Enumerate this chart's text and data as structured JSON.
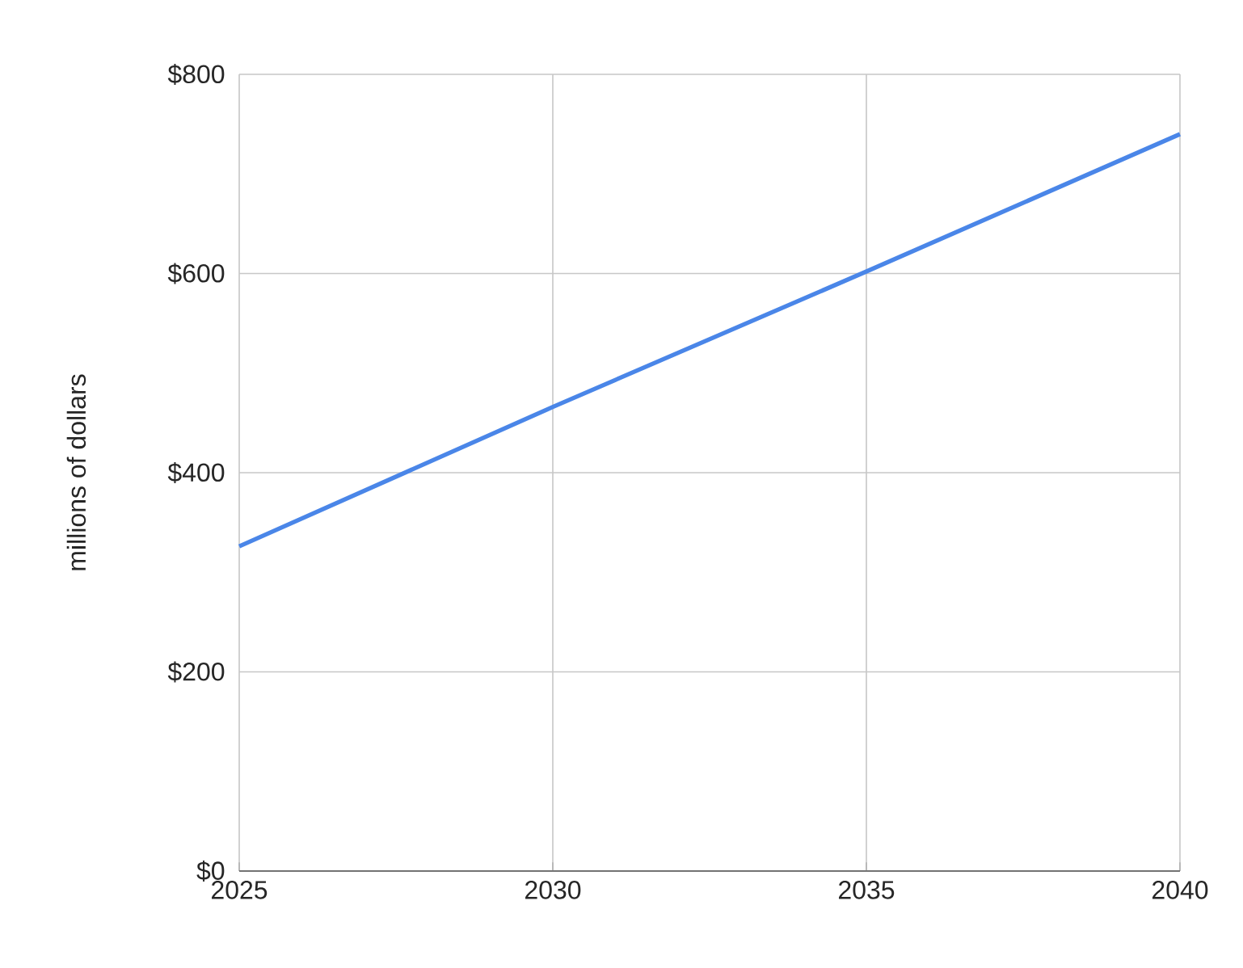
{
  "chart_data": {
    "type": "line",
    "ylabel": "millions of dollars",
    "x": [
      2025,
      2030,
      2035,
      2040
    ],
    "series": [
      {
        "color": "#4a86e8",
        "values": [
          326,
          466,
          602,
          740
        ]
      }
    ],
    "xlim": [
      2025,
      2040
    ],
    "xticks": [
      2025,
      2030,
      2035,
      2040
    ],
    "ylim": [
      0,
      800
    ],
    "yticks": [
      {
        "value": 0,
        "label": "$0"
      },
      {
        "value": 200,
        "label": "$200"
      },
      {
        "value": 400,
        "label": "$400"
      },
      {
        "value": 600,
        "label": "$600"
      },
      {
        "value": 800,
        "label": "$800"
      }
    ],
    "grid": true,
    "marker": "none",
    "line_style": "solid"
  }
}
